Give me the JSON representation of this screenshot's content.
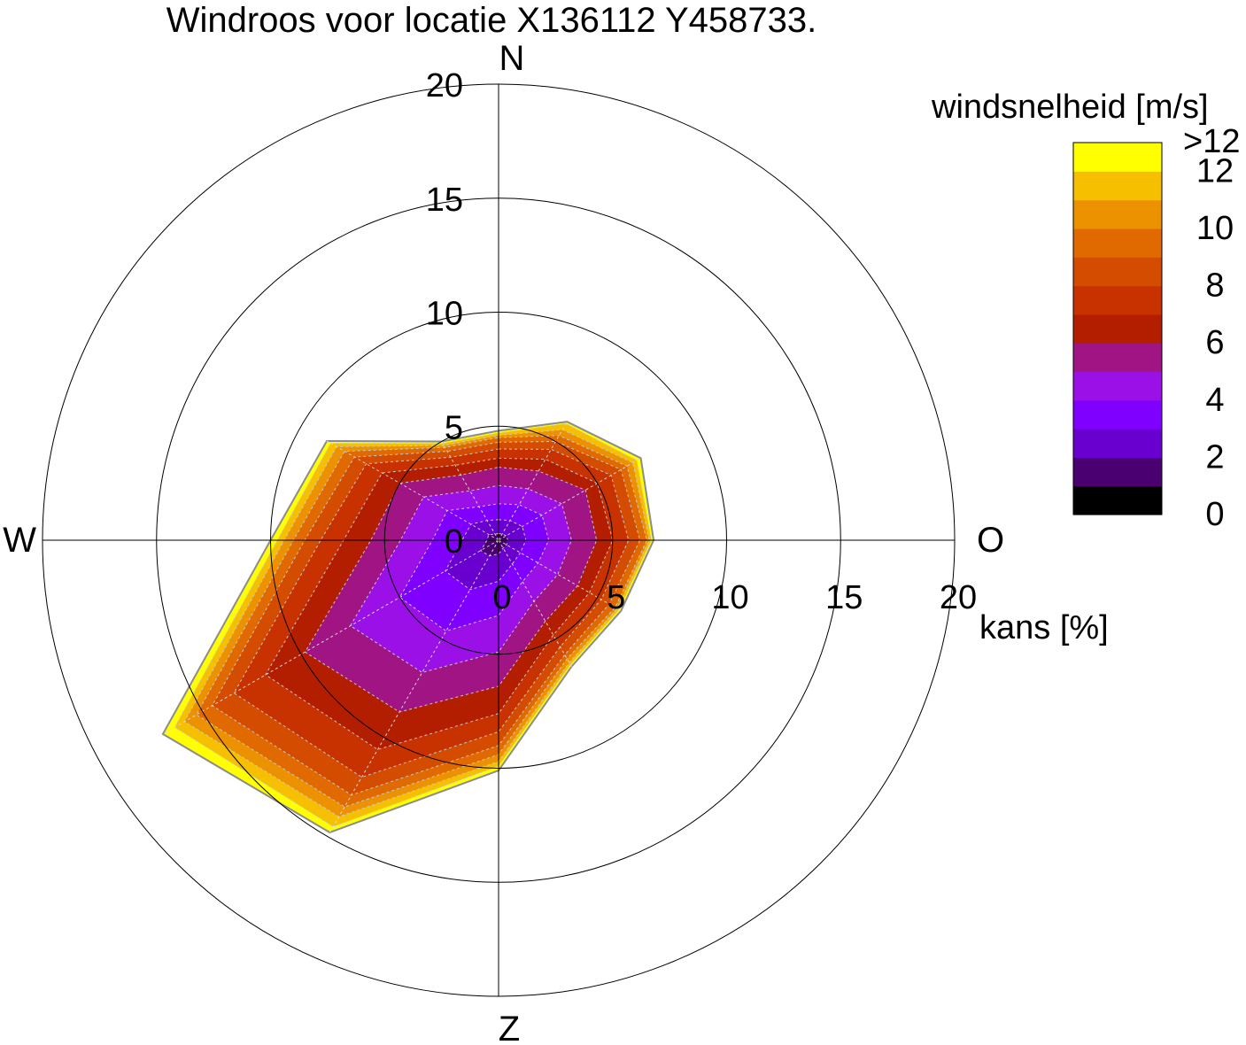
{
  "chart_data": {
    "type": "polar-area",
    "title": "Windroos voor locatie X136112 Y458733.",
    "directions": [
      "N",
      "O",
      "Z",
      "W"
    ],
    "radial_label": "kans [%]",
    "radial_ticks": [
      "0",
      "5",
      "10",
      "15",
      "20"
    ],
    "radial_range": [
      0,
      20
    ],
    "sector_angles_deg": [
      0,
      30,
      60,
      90,
      120,
      150,
      180,
      210,
      240,
      270,
      300,
      330
    ],
    "colorbar": {
      "title": "windsnelheid [m/s]",
      "tick_labels": [
        "0",
        "2",
        "4",
        "6",
        "8",
        "10",
        "12",
        ">12"
      ],
      "bins": [
        {
          "upper": 1,
          "color": "#000000"
        },
        {
          "upper": 2,
          "color": "#4a0070"
        },
        {
          "upper": 3,
          "color": "#6a00d0"
        },
        {
          "upper": 4,
          "color": "#8000ff"
        },
        {
          "upper": 5,
          "color": "#9a10e6"
        },
        {
          "upper": 6,
          "color": "#a01483"
        },
        {
          "upper": 7,
          "color": "#b41e00"
        },
        {
          "upper": 8,
          "color": "#c83200"
        },
        {
          "upper": 9,
          "color": "#d44c00"
        },
        {
          "upper": 10,
          "color": "#e06a00"
        },
        {
          "upper": 11,
          "color": "#ec9200"
        },
        {
          "upper": 12,
          "color": "#f6c000"
        },
        {
          "upper": ">12",
          "color": "#ffff00"
        }
      ]
    },
    "cumulative_series": [
      {
        "name": ">12",
        "values": [
          4.8,
          6.0,
          7.2,
          6.8,
          6.2,
          6.4,
          10.1,
          14.8,
          17.0,
          10.0,
          8.7,
          5.0
        ]
      },
      {
        "name": "12",
        "values": [
          4.7,
          5.9,
          7.0,
          6.7,
          6.1,
          6.3,
          9.9,
          14.5,
          16.4,
          9.7,
          8.5,
          4.9
        ]
      },
      {
        "name": "11",
        "values": [
          4.6,
          5.6,
          6.8,
          6.6,
          6.0,
          6.2,
          9.7,
          14.0,
          15.9,
          9.4,
          8.2,
          4.8
        ]
      },
      {
        "name": "10",
        "values": [
          4.5,
          5.3,
          6.5,
          6.5,
          5.9,
          6.0,
          9.4,
          13.5,
          15.3,
          9.0,
          7.8,
          4.7
        ]
      },
      {
        "name": "9",
        "values": [
          4.3,
          5.0,
          6.2,
          6.2,
          5.6,
          5.8,
          9.0,
          12.9,
          14.5,
          8.5,
          7.3,
          4.5
        ]
      },
      {
        "name": "8",
        "values": [
          4.0,
          4.6,
          5.7,
          5.7,
          5.2,
          5.4,
          8.4,
          12.0,
          13.4,
          7.8,
          6.7,
          4.2
        ]
      },
      {
        "name": "7",
        "values": [
          3.6,
          4.1,
          5.0,
          5.0,
          4.6,
          4.8,
          7.6,
          10.6,
          11.8,
          6.8,
          5.9,
          3.8
        ]
      },
      {
        "name": "6",
        "values": [
          3.2,
          3.5,
          4.4,
          4.3,
          4.0,
          4.1,
          6.4,
          8.7,
          9.8,
          5.6,
          5.0,
          3.3
        ]
      },
      {
        "name": "5",
        "values": [
          2.4,
          2.6,
          3.2,
          3.2,
          3.0,
          3.1,
          4.9,
          6.7,
          7.5,
          4.3,
          3.8,
          2.5
        ]
      },
      {
        "name": "4",
        "values": [
          1.6,
          1.8,
          2.2,
          2.2,
          2.0,
          2.1,
          3.3,
          4.6,
          5.0,
          2.9,
          2.6,
          1.7
        ]
      },
      {
        "name": "3",
        "values": [
          0.9,
          1.0,
          1.2,
          1.2,
          1.1,
          1.2,
          1.8,
          2.5,
          2.7,
          1.6,
          1.4,
          1.0
        ]
      },
      {
        "name": "2",
        "values": [
          0.3,
          0.3,
          0.4,
          0.4,
          0.4,
          0.4,
          0.6,
          0.8,
          0.9,
          0.5,
          0.5,
          0.3
        ]
      },
      {
        "name": "1",
        "values": [
          0.05,
          0.05,
          0.05,
          0.05,
          0.05,
          0.05,
          0.1,
          0.1,
          0.1,
          0.1,
          0.05,
          0.05
        ]
      }
    ],
    "grid": true,
    "legend_position": "top-right"
  }
}
